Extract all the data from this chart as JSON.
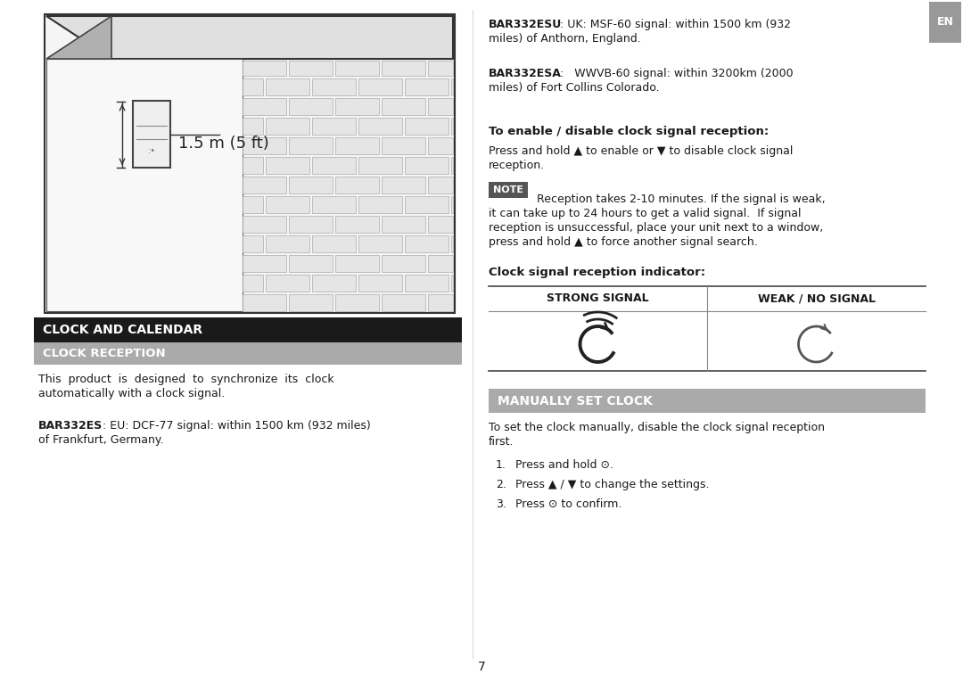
{
  "page_bg": "#ffffff",
  "tab_bg": "#999999",
  "tab_text_color": "#ffffff",
  "black_header_bg": "#1a1a1a",
  "black_header_text": "#ffffff",
  "gray_header_bg": "#aaaaaa",
  "gray_header_text": "#ffffff",
  "body_text_color": "#1a1a1a",
  "note_bg": "#555555",
  "note_text_color": "#ffffff",
  "page_number": "7",
  "en_tab_text": "EN",
  "clock_calendar_header": "CLOCK AND CALENDAR",
  "clock_reception_header": "CLOCK RECEPTION",
  "manually_set_header": "MANUALLY SET CLOCK",
  "clock_reception_body1": "This  product  is  designed  to  synchronize  its  clock",
  "clock_reception_body2": "automatically with a clock signal.",
  "bar332es_line1": "BAR332ES: EU: DCF-77 signal: within 1500 km (932 miles)",
  "bar332es_line2": "of Frankfurt, Germany.",
  "bar332esu_line1": "BAR332ESU: UK: MSF-60 signal: within 1500 km (932",
  "bar332esu_line2": "miles) of Anthorn, England.",
  "bar332esa_line1": "BAR332ESA:   WWVB-60 signal: within 3200km (2000",
  "bar332esa_line2": "miles) of Fort Collins Colorado.",
  "enable_disable_header": "To enable / disable clock signal reception:",
  "enable_disable_line1": "Press and hold ▲ to enable or ▼ to disable clock signal",
  "enable_disable_line2": "reception.",
  "note_label": "NOTE",
  "note_line1": " Reception takes 2-10 minutes. If the signal is weak,",
  "note_line2": "it can take up to 24 hours to get a valid signal.  If signal",
  "note_line3": "reception is unsuccessful, place your unit next to a window,",
  "note_line4": "press and hold ▲ to force another signal search.",
  "signal_indicator_header": "Clock signal reception indicator:",
  "strong_signal_label": "STRONG SIGNAL",
  "weak_signal_label": "WEAK / NO SIGNAL",
  "manually_set_body1": "To set the clock manually, disable the clock signal reception",
  "manually_set_body2": "first.",
  "step1": "Press and hold ⊙.",
  "step2": "Press ▲ / ▼ to change the settings.",
  "step3": "Press ⊙ to confirm.",
  "measurement_text": "1.5 m (5 ft)"
}
